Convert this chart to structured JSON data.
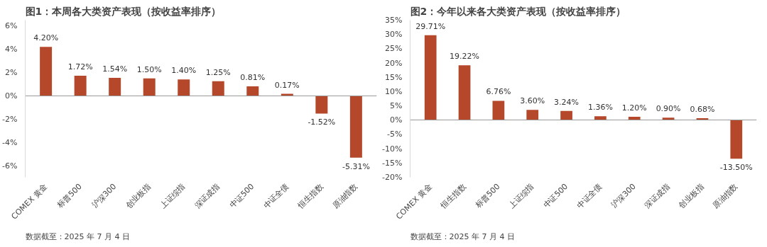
{
  "chart_data": [
    {
      "type": "bar",
      "title": "图1：本周各大类资产表现（按收益率排序）",
      "categories": [
        "COMEX 黄金",
        "标普500",
        "沪深300",
        "创业板指",
        "上证综指",
        "深证成指",
        "中证500",
        "中证全债",
        "恒生指数",
        "原油指数"
      ],
      "values": [
        4.2,
        1.72,
        1.54,
        1.5,
        1.4,
        1.25,
        0.81,
        0.17,
        -1.52,
        -5.31
      ],
      "value_labels": [
        "4.20%",
        "1.72%",
        "1.54%",
        "1.50%",
        "1.40%",
        "1.25%",
        "0.81%",
        "0.17%",
        "-1.52%",
        "-5.31%"
      ],
      "color": "#b5472b",
      "ylim": [
        -7,
        6.5
      ],
      "yticks": [
        {
          "value": -6,
          "label": "-6%"
        },
        {
          "value": -4,
          "label": "-4%"
        },
        {
          "value": -2,
          "label": "-2%"
        },
        {
          "value": 0,
          "label": "0%"
        },
        {
          "value": 2,
          "label": "2%"
        },
        {
          "value": 4,
          "label": "4%"
        },
        {
          "value": 6,
          "label": "6%"
        }
      ],
      "annotations": [
        "数据截至：2025 年 7 月 4 日"
      ]
    },
    {
      "type": "bar",
      "title": "图2：今年以来各大类资产表现（按收益率排序）",
      "categories": [
        "COMEX 黄金",
        "恒生指数",
        "标普500",
        "上证综指",
        "中证500",
        "中证全债",
        "沪深300",
        "深证成指",
        "创业板指",
        "原油指数"
      ],
      "values": [
        29.71,
        19.22,
        6.76,
        3.6,
        3.24,
        1.36,
        1.2,
        0.9,
        0.68,
        -13.5
      ],
      "value_labels": [
        "29.71%",
        "19.22%",
        "6.76%",
        "3.60%",
        "3.24%",
        "1.36%",
        "1.20%",
        "0.90%",
        "0.68%",
        "-13.50%"
      ],
      "color": "#b5472b",
      "ylim": [
        -20,
        35
      ],
      "yticks": [
        {
          "value": -20,
          "label": "-20%"
        },
        {
          "value": -15,
          "label": "-15%"
        },
        {
          "value": -10,
          "label": "-10%"
        },
        {
          "value": -5,
          "label": "-5%"
        },
        {
          "value": 0,
          "label": "0%"
        },
        {
          "value": 5,
          "label": "5%"
        },
        {
          "value": 10,
          "label": "10%"
        },
        {
          "value": 15,
          "label": "15%"
        },
        {
          "value": 20,
          "label": "20%"
        },
        {
          "value": 25,
          "label": "25%"
        },
        {
          "value": 30,
          "label": "30%"
        },
        {
          "value": 35,
          "label": "35%"
        }
      ],
      "annotations": [
        "数据截至：2025 年 7 月 4 日"
      ]
    }
  ]
}
